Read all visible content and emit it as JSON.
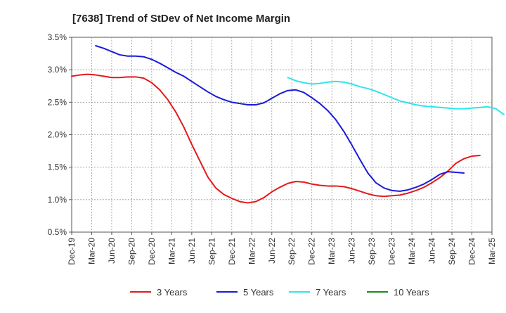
{
  "chart_data": {
    "type": "line",
    "title": "[7638]  Trend of StDev of Net Income Margin",
    "xlabel": "",
    "ylabel": "",
    "x_tick_labels": [
      "Dec-19",
      "Mar-20",
      "Jun-20",
      "Sep-20",
      "Dec-20",
      "Mar-21",
      "Jun-21",
      "Sep-21",
      "Dec-21",
      "Mar-22",
      "Jun-22",
      "Sep-22",
      "Dec-22",
      "Mar-23",
      "Jun-23",
      "Sep-23",
      "Dec-23",
      "Mar-24",
      "Jun-24",
      "Sep-24",
      "Dec-24",
      "Mar-25"
    ],
    "y_tick_labels": [
      "3.5%",
      "3.0%",
      "2.5%",
      "2.0%",
      "1.5%",
      "1.0%",
      "0.5%"
    ],
    "ylim": [
      0.5,
      3.5
    ],
    "y_unit": "%",
    "grid": true,
    "legend_position": "bottom",
    "series": [
      {
        "name": "3 Years",
        "color": "#e31a1c",
        "start_index": 0,
        "values": [
          2.9,
          2.92,
          2.93,
          2.92,
          2.9,
          2.88,
          2.88,
          2.89,
          2.89,
          2.87,
          2.8,
          2.69,
          2.54,
          2.35,
          2.12,
          1.85,
          1.6,
          1.35,
          1.18,
          1.08,
          1.02,
          0.97,
          0.95,
          0.97,
          1.03,
          1.12,
          1.19,
          1.25,
          1.28,
          1.27,
          1.24,
          1.22,
          1.21,
          1.21,
          1.2,
          1.17,
          1.13,
          1.09,
          1.06,
          1.05,
          1.06,
          1.07,
          1.1,
          1.14,
          1.19,
          1.26,
          1.34,
          1.44,
          1.56,
          1.63,
          1.67,
          1.68
        ]
      },
      {
        "name": "5 Years",
        "color": "#1a1adb",
        "start_index": 3,
        "values": [
          3.37,
          3.33,
          3.28,
          3.23,
          3.21,
          3.21,
          3.2,
          3.16,
          3.1,
          3.03,
          2.96,
          2.9,
          2.82,
          2.74,
          2.66,
          2.59,
          2.54,
          2.5,
          2.48,
          2.46,
          2.46,
          2.49,
          2.56,
          2.63,
          2.68,
          2.69,
          2.65,
          2.57,
          2.48,
          2.37,
          2.23,
          2.05,
          1.84,
          1.62,
          1.41,
          1.26,
          1.18,
          1.14,
          1.13,
          1.15,
          1.19,
          1.24,
          1.31,
          1.39,
          1.43,
          1.42,
          1.41
        ]
      },
      {
        "name": "7 Years",
        "color": "#2de6ea",
        "start_index": 27,
        "values": [
          2.88,
          2.83,
          2.8,
          2.78,
          2.79,
          2.81,
          2.82,
          2.81,
          2.78,
          2.74,
          2.71,
          2.67,
          2.62,
          2.57,
          2.52,
          2.49,
          2.46,
          2.44,
          2.43,
          2.42,
          2.41,
          2.4,
          2.4,
          2.41,
          2.42,
          2.43,
          2.4,
          2.31
        ]
      },
      {
        "name": "10 Years",
        "color": "#1a8a1a",
        "start_index": 0,
        "values": []
      }
    ]
  }
}
